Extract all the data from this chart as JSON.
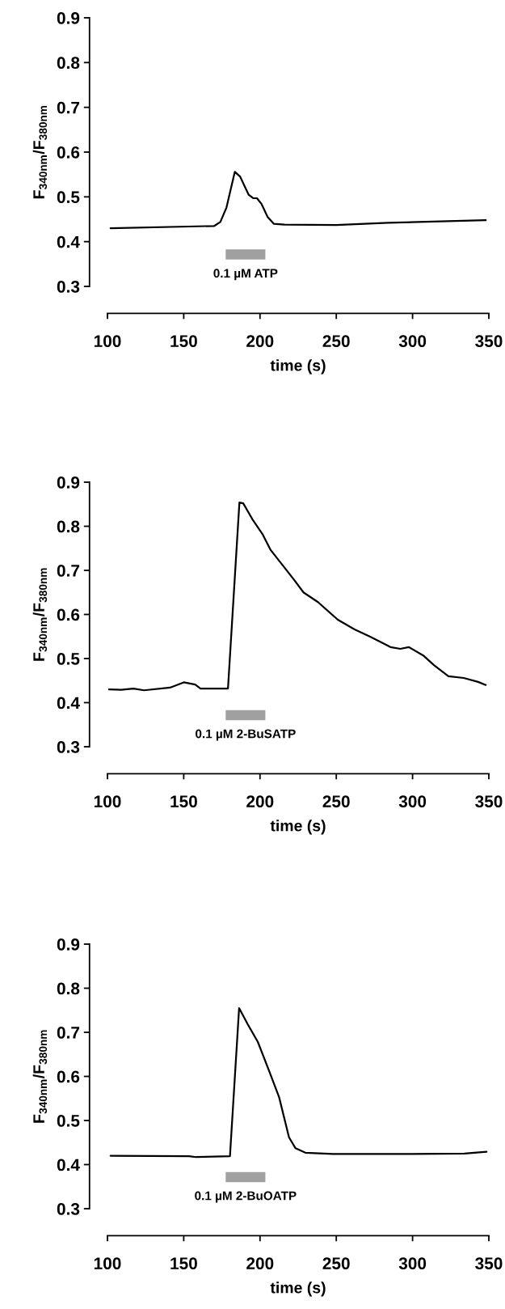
{
  "chart_data": [
    {
      "type": "line",
      "xlabel": "time (s)",
      "ylabel": "F$_{340nm}$/F$_{380nm}$",
      "xlim": [
        100,
        350
      ],
      "xticks": [
        100,
        150,
        200,
        250,
        300,
        350
      ],
      "ylim": [
        0.3,
        0.9
      ],
      "yticks": [
        0.3,
        0.4,
        0.5,
        0.6,
        0.7,
        0.8,
        0.9
      ],
      "grid": false,
      "marker": "none",
      "line_style": "solid",
      "series": [
        {
          "color": "#000000",
          "x": [
            102,
            170,
            174,
            178,
            183.5,
            187,
            192.5,
            195.5,
            198,
            201,
            205,
            209,
            216,
            250,
            284,
            348
          ],
          "values": [
            0.43,
            0.435,
            0.444,
            0.476,
            0.556,
            0.545,
            0.505,
            0.497,
            0.497,
            0.484,
            0.455,
            0.44,
            0.438,
            0.437,
            0.442,
            0.448
          ]
        }
      ],
      "annotations": [
        "0.1 µM ATP"
      ]
    },
    {
      "type": "line",
      "xlabel": "time (s)",
      "ylabel": "F$_{340nm}$/F$_{380nm}$",
      "xlim": [
        100,
        350
      ],
      "xticks": [
        100,
        150,
        200,
        250,
        300,
        350
      ],
      "ylim": [
        0.3,
        0.9
      ],
      "yticks": [
        0.3,
        0.4,
        0.5,
        0.6,
        0.7,
        0.8,
        0.9
      ],
      "grid": false,
      "marker": "none",
      "line_style": "solid",
      "series": [
        {
          "color": "#000000",
          "x": [
            101,
            109,
            117,
            124,
            141,
            150,
            157.5,
            161,
            179,
            186.5,
            189,
            195,
            201.5,
            207,
            214.5,
            222,
            228.5,
            238,
            251,
            262,
            272.5,
            285.5,
            292,
            297.5,
            307,
            314,
            323.5,
            333.5,
            343,
            348
          ],
          "values": [
            0.43,
            0.429,
            0.432,
            0.428,
            0.434,
            0.446,
            0.441,
            0.432,
            0.432,
            0.854,
            0.852,
            0.816,
            0.783,
            0.746,
            0.713,
            0.68,
            0.65,
            0.628,
            0.588,
            0.566,
            0.549,
            0.526,
            0.522,
            0.526,
            0.507,
            0.485,
            0.46,
            0.456,
            0.447,
            0.44
          ]
        }
      ],
      "annotations": [
        "0.1 µM 2-BuSATP"
      ]
    },
    {
      "type": "line",
      "xlabel": "time (s)",
      "ylabel": "F$_{340nm}$/F$_{380nm}$",
      "xlim": [
        100,
        350
      ],
      "xticks": [
        100,
        150,
        200,
        250,
        300,
        350
      ],
      "ylim": [
        0.3,
        0.9
      ],
      "yticks": [
        0.3,
        0.4,
        0.5,
        0.6,
        0.7,
        0.8,
        0.9
      ],
      "grid": false,
      "marker": "none",
      "line_style": "solid",
      "series": [
        {
          "color": "#000000",
          "x": [
            102,
            153.5,
            158,
            180.3,
            186.3,
            192,
            198.6,
            206,
            212.5,
            219,
            223.3,
            229.7,
            248,
            297,
            334,
            348.5
          ],
          "values": [
            0.42,
            0.419,
            0.417,
            0.419,
            0.755,
            0.718,
            0.678,
            0.612,
            0.553,
            0.462,
            0.437,
            0.427,
            0.424,
            0.424,
            0.425,
            0.429
          ]
        }
      ],
      "annotations": [
        "0.1 µM 2-BuOATP"
      ]
    }
  ]
}
